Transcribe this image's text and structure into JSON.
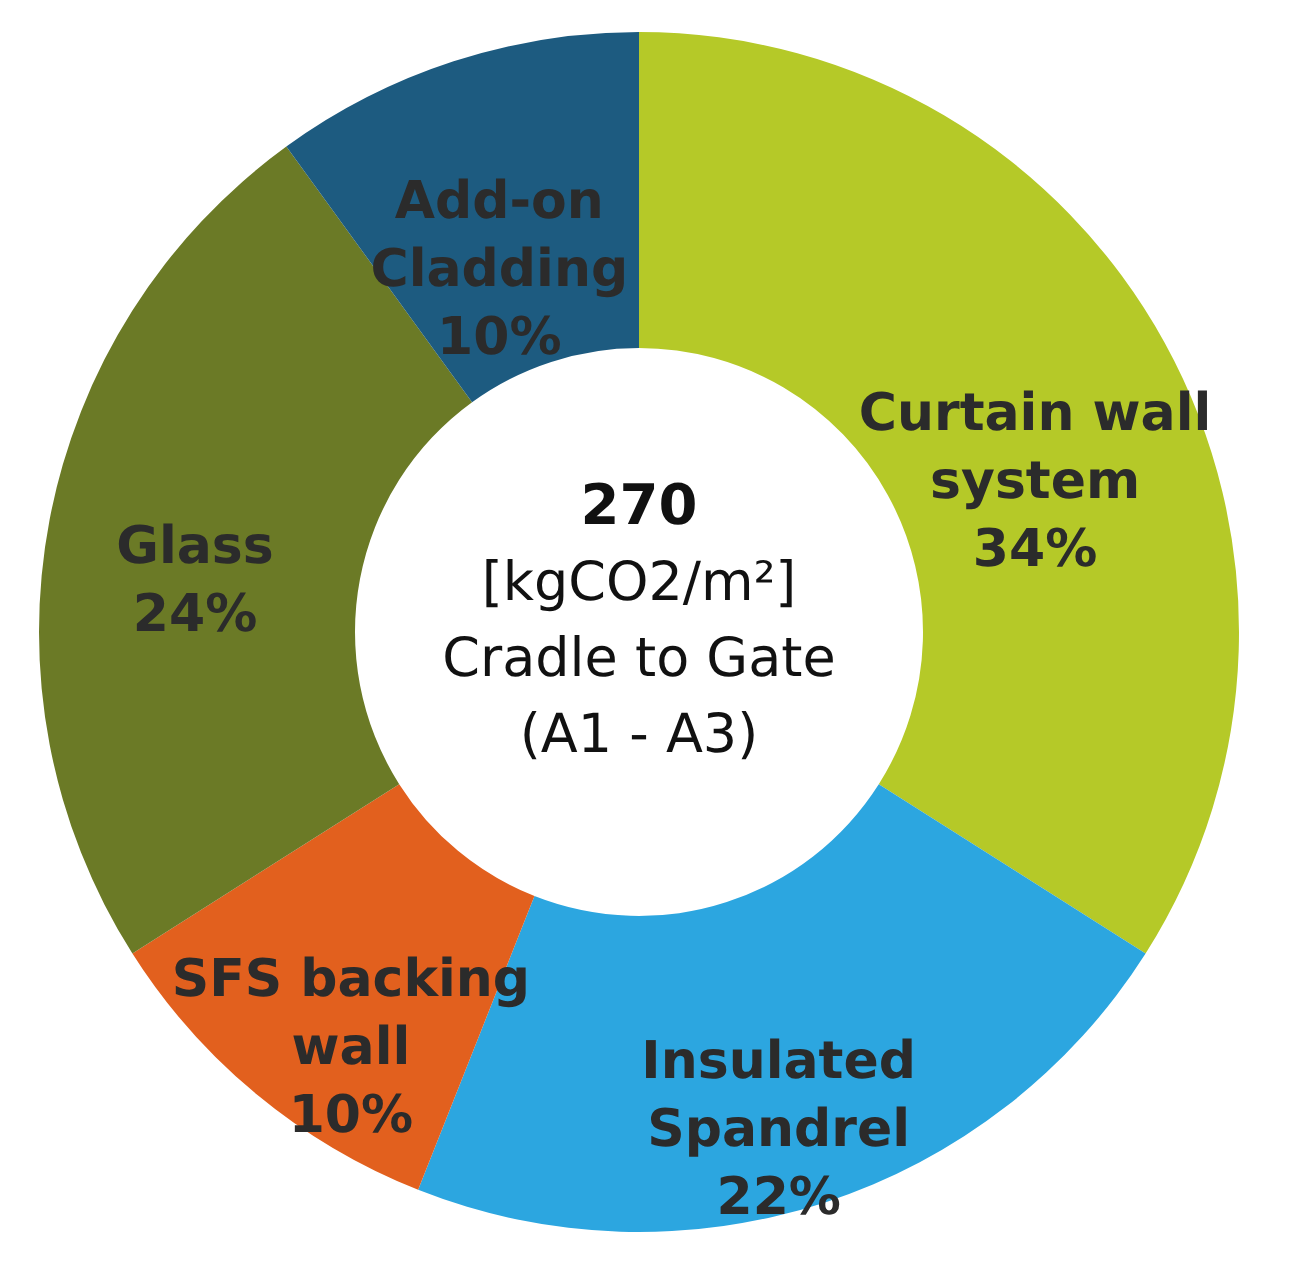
{
  "chart_data": {
    "type": "donut",
    "categories": [
      "Curtain wall system",
      "Insulated Spandrel",
      "SFS backing wall",
      "Glass",
      "Add-on Cladding"
    ],
    "values": [
      34,
      22,
      10,
      24,
      10
    ],
    "value_labels": [
      "34%",
      "22%",
      "10%",
      "24%",
      "10%"
    ],
    "colors": [
      "#b5c928",
      "#2ca6e0",
      "#e2601e",
      "#6b7a26",
      "#1d5b80"
    ],
    "annotations": [
      "270",
      "[kgCO2/m²]",
      "Cradle to Gate",
      "(A1 - A3)"
    ],
    "legend": false
  }
}
